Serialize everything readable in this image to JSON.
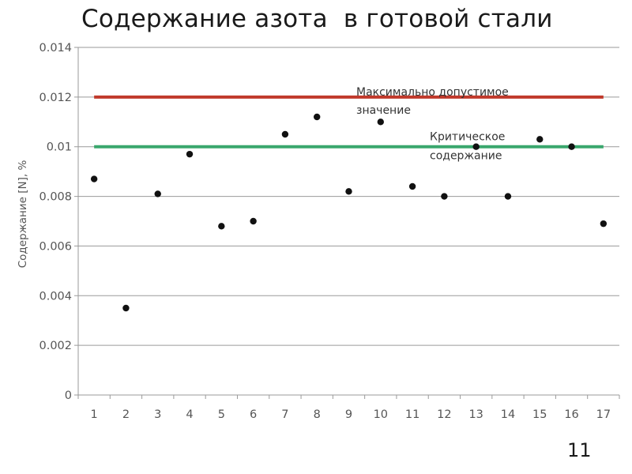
{
  "title": "Содержание азота  в готовой стали",
  "page_number": "11",
  "chart_data": {
    "type": "scatter",
    "title": "Содержание азота  в готовой стали",
    "xlabel": "",
    "ylabel": "Содержание [N], %",
    "x_categories": [
      "1",
      "2",
      "3",
      "4",
      "5",
      "6",
      "7",
      "8",
      "9",
      "10",
      "11",
      "12",
      "13",
      "14",
      "15",
      "16",
      "17"
    ],
    "y_ticks": [
      "0",
      "0.002",
      "0.004",
      "0.006",
      "0.008",
      "0.01",
      "0.012",
      "0.014"
    ],
    "ylim": [
      0,
      0.014
    ],
    "grid": "horizontal",
    "points": [
      {
        "x": 1,
        "y": 0.0087
      },
      {
        "x": 2,
        "y": 0.0035
      },
      {
        "x": 3,
        "y": 0.0081
      },
      {
        "x": 4,
        "y": 0.0097
      },
      {
        "x": 5,
        "y": 0.0068
      },
      {
        "x": 6,
        "y": 0.007
      },
      {
        "x": 7,
        "y": 0.0105
      },
      {
        "x": 8,
        "y": 0.0112
      },
      {
        "x": 9,
        "y": 0.0082
      },
      {
        "x": 10,
        "y": 0.011
      },
      {
        "x": 11,
        "y": 0.0084
      },
      {
        "x": 12,
        "y": 0.008
      },
      {
        "x": 13,
        "y": 0.01
      },
      {
        "x": 14,
        "y": 0.008
      },
      {
        "x": 15,
        "y": 0.0103
      },
      {
        "x": 16,
        "y": 0.01
      },
      {
        "x": 17,
        "y": 0.0069
      }
    ],
    "reference_lines": [
      {
        "value": 0.012,
        "color": "#c0392b",
        "label_lines": [
          "Максимально допустимое",
          "значение"
        ]
      },
      {
        "value": 0.01,
        "color": "#3aa76d",
        "label_lines": [
          "Критическое",
          "содержание"
        ]
      }
    ],
    "marker_color": "#111111",
    "grid_color": "#9a9a9a"
  }
}
